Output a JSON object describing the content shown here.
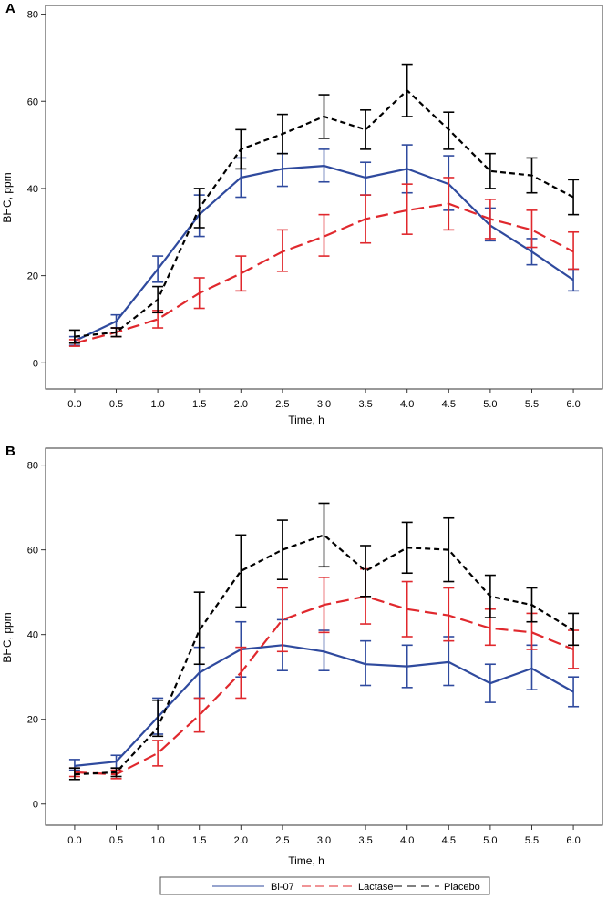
{
  "colors": {
    "bi07": "#2f4a9e",
    "lactase": "#e0282d",
    "placebo": "#000000",
    "frame": "#333333"
  },
  "legend": {
    "items": [
      {
        "label": "Bi-07",
        "series": "Bi-07"
      },
      {
        "label": "Lactase",
        "series": "Lactase"
      },
      {
        "label": "Placebo",
        "series": "Placebo"
      }
    ]
  },
  "chart_data": [
    {
      "panel_label": "A",
      "type": "line",
      "title": "",
      "xlabel": "Time, h",
      "ylabel": "BHC, ppm",
      "xlim": [
        -0.35,
        6.35
      ],
      "ylim": [
        -6,
        82
      ],
      "x_ticks": [
        0.0,
        0.5,
        1.0,
        1.5,
        2.0,
        2.5,
        3.0,
        3.5,
        4.0,
        4.5,
        5.0,
        5.5,
        6.0
      ],
      "x_tick_labels": [
        "0.0",
        "0.5",
        "1.0",
        "1.5",
        "2.0",
        "2.5",
        "3.0",
        "3.5",
        "4.0",
        "4.5",
        "5.0",
        "5.5",
        "6.0"
      ],
      "y_ticks": [
        0,
        20,
        40,
        60,
        80
      ],
      "y_tick_labels": [
        "0",
        "20",
        "40",
        "60",
        "80"
      ],
      "x": [
        0.0,
        0.5,
        1.0,
        1.5,
        2.0,
        2.5,
        3.0,
        3.5,
        4.0,
        4.5,
        5.0,
        5.5,
        6.0
      ],
      "series": [
        {
          "name": "Bi-07",
          "color_key": "bi07",
          "dash": "solid",
          "values": [
            5,
            9.5,
            21.5,
            34,
            42.5,
            44.5,
            45.2,
            42.5,
            44.5,
            41,
            31.5,
            25.5,
            19
          ],
          "lower": [
            4,
            8,
            18.5,
            29,
            38,
            40.5,
            41.5,
            38.5,
            39,
            35,
            28,
            22.5,
            16.5
          ],
          "upper": [
            6,
            11,
            24.5,
            38.5,
            47,
            48,
            49,
            46,
            50,
            47.5,
            35.5,
            28.5,
            21.5
          ]
        },
        {
          "name": "Lactase",
          "color_key": "lactase",
          "dash": "long",
          "values": [
            4.5,
            7,
            10,
            16,
            20.5,
            25.5,
            29,
            33,
            35,
            36.5,
            33,
            30.5,
            25.5
          ],
          "lower": [
            3.8,
            6,
            8,
            12.5,
            16.5,
            21,
            24.5,
            27.5,
            29.5,
            30.5,
            28.5,
            26.5,
            21.5
          ],
          "upper": [
            5.3,
            8,
            12,
            19.5,
            24.5,
            30.5,
            34,
            38.5,
            41,
            42.5,
            37.5,
            35,
            30
          ]
        },
        {
          "name": "Placebo",
          "color_key": "placebo",
          "dash": "short",
          "values": [
            6,
            7,
            14.5,
            35.5,
            49,
            52.5,
            56.5,
            53.5,
            62.5,
            53.5,
            44,
            43,
            38
          ],
          "lower": [
            4.5,
            6,
            11.5,
            31,
            44.5,
            48,
            51.5,
            49,
            56.5,
            49,
            40,
            39,
            34
          ],
          "upper": [
            7.5,
            8,
            17.5,
            40,
            53.5,
            57,
            61.5,
            58,
            68.5,
            57.5,
            48,
            47,
            42
          ]
        }
      ]
    },
    {
      "panel_label": "B",
      "type": "line",
      "title": "",
      "xlabel": "Time, h",
      "ylabel": "BHC, ppm",
      "xlim": [
        -0.35,
        6.35
      ],
      "ylim": [
        -5,
        84
      ],
      "x_ticks": [
        0.0,
        0.5,
        1.0,
        1.5,
        2.0,
        2.5,
        3.0,
        3.5,
        4.0,
        4.5,
        5.0,
        5.5,
        6.0
      ],
      "x_tick_labels": [
        "0.0",
        "0.5",
        "1.0",
        "1.5",
        "2.0",
        "2.5",
        "3.0",
        "3.5",
        "4.0",
        "4.5",
        "5.0",
        "5.5",
        "6.0"
      ],
      "y_ticks": [
        0,
        20,
        40,
        60,
        80
      ],
      "y_tick_labels": [
        "0",
        "20",
        "40",
        "60",
        "80"
      ],
      "x": [
        0.0,
        0.5,
        1.0,
        1.5,
        2.0,
        2.5,
        3.0,
        3.5,
        4.0,
        4.5,
        5.0,
        5.5,
        6.0
      ],
      "series": [
        {
          "name": "Bi-07",
          "color_key": "bi07",
          "dash": "solid",
          "values": [
            9,
            10,
            20.5,
            31,
            36.5,
            37.5,
            36,
            33,
            32.5,
            33.5,
            28.5,
            32,
            26.5
          ],
          "lower": [
            8,
            8.5,
            16.5,
            25,
            30,
            31.5,
            31.5,
            28,
            27.5,
            28,
            24,
            27,
            23
          ],
          "upper": [
            10.5,
            11.5,
            25,
            37,
            43,
            43.5,
            41,
            38.5,
            37.5,
            39.5,
            33,
            37.5,
            30
          ]
        },
        {
          "name": "Lactase",
          "color_key": "lactase",
          "dash": "long",
          "values": [
            7.5,
            7,
            12,
            21,
            31,
            43.5,
            47,
            49,
            46,
            44.5,
            41.5,
            40.5,
            36.5
          ],
          "lower": [
            6.5,
            6,
            9,
            17,
            25,
            36,
            40.5,
            42.5,
            39.5,
            38.5,
            37.5,
            36.5,
            32
          ],
          "upper": [
            8.5,
            8,
            15,
            25,
            37,
            51,
            53.5,
            55.5,
            52.5,
            51,
            46,
            45,
            41
          ]
        },
        {
          "name": "Placebo",
          "color_key": "placebo",
          "dash": "short",
          "values": [
            7,
            7.5,
            18,
            41,
            55,
            60,
            63.5,
            55,
            60.5,
            60,
            49,
            47,
            41
          ],
          "lower": [
            5.8,
            6.5,
            16,
            33,
            46.5,
            53,
            56,
            49,
            54.5,
            52.5,
            44,
            43,
            37.5
          ],
          "upper": [
            8.5,
            8.5,
            24.5,
            50,
            63.5,
            67,
            71,
            61,
            66.5,
            67.5,
            54,
            51,
            45
          ]
        }
      ]
    }
  ]
}
